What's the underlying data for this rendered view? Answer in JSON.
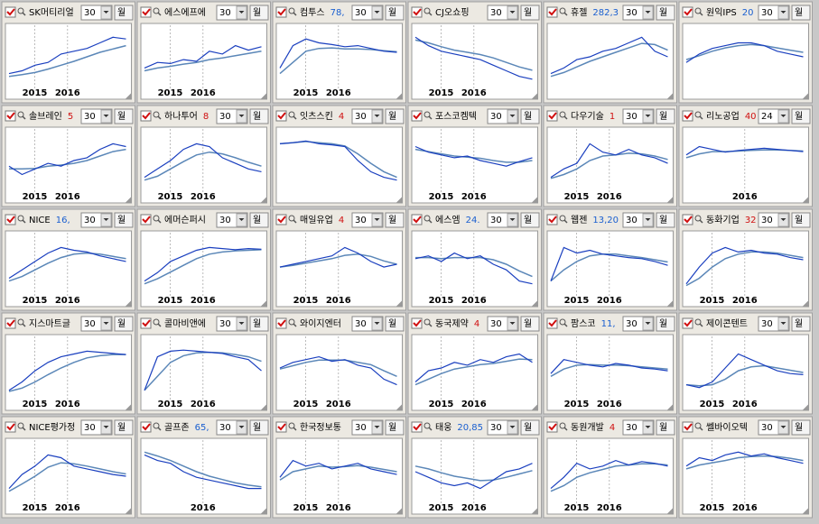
{
  "ylim": [
    0,
    100
  ],
  "price_line_color": "#1a3fbf",
  "ma_color": "#5b87b8",
  "panels": [
    {
      "name": "SK머티리얼",
      "period": "30",
      "button": "월",
      "xlabels": [
        "2015",
        "2016"
      ],
      "price_series": [
        20,
        25,
        35,
        40,
        55,
        60,
        65,
        75,
        85,
        82
      ],
      "ma_series": [
        15,
        18,
        22,
        28,
        35,
        42,
        50,
        58,
        64,
        70
      ]
    },
    {
      "name": "에스에프에",
      "period": "30",
      "button": "월",
      "xlabels": [
        "2015",
        "2016"
      ],
      "price_series": [
        30,
        40,
        38,
        45,
        42,
        60,
        55,
        70,
        62,
        68
      ],
      "ma_series": [
        25,
        30,
        33,
        37,
        40,
        45,
        48,
        52,
        56,
        60
      ]
    },
    {
      "name": "컴투스",
      "price": "78,",
      "price_color": "#1a5fd0",
      "period": "30",
      "button": "월",
      "xlabels": [
        "2015",
        "2016"
      ],
      "price_series": [
        30,
        70,
        82,
        75,
        72,
        68,
        70,
        65,
        60,
        58
      ],
      "ma_series": [
        20,
        40,
        60,
        65,
        66,
        64,
        64,
        63,
        61,
        59
      ]
    },
    {
      "name": "CJ오쇼핑",
      "period": "30",
      "button": "월",
      "xlabels": [
        "2015",
        "2016"
      ],
      "price_series": [
        85,
        70,
        60,
        55,
        50,
        45,
        35,
        25,
        15,
        10
      ],
      "ma_series": [
        80,
        75,
        68,
        62,
        58,
        54,
        48,
        40,
        32,
        26
      ]
    },
    {
      "name": "휴젤",
      "price": "282,3",
      "price_color": "#1a5fd0",
      "period": "30",
      "button": "월",
      "xlabels": [],
      "price_series": [
        20,
        30,
        45,
        50,
        60,
        65,
        75,
        85,
        60,
        50
      ],
      "ma_series": [
        15,
        22,
        32,
        42,
        50,
        58,
        66,
        74,
        72,
        62
      ]
    },
    {
      "name": "원익IPS",
      "price": "20",
      "price_color": "#1a5fd0",
      "period": "30",
      "button": "월",
      "xlabels": [],
      "price_series": [
        40,
        55,
        65,
        70,
        75,
        75,
        70,
        60,
        55,
        50
      ],
      "ma_series": [
        45,
        52,
        60,
        66,
        70,
        72,
        70,
        66,
        62,
        58
      ]
    },
    {
      "name": "솔브레인",
      "price": "5",
      "price_color": "#d01010",
      "period": "30",
      "button": "월",
      "xlabels": [
        "2015",
        "2016"
      ],
      "price_series": [
        40,
        25,
        35,
        45,
        40,
        50,
        55,
        70,
        80,
        75
      ],
      "ma_series": [
        35,
        35,
        36,
        40,
        42,
        45,
        50,
        58,
        66,
        70
      ]
    },
    {
      "name": "하나투어",
      "price": "8",
      "price_color": "#d01010",
      "period": "30",
      "button": "월",
      "xlabels": [
        "2015",
        "2016"
      ],
      "price_series": [
        20,
        35,
        50,
        70,
        80,
        75,
        55,
        45,
        35,
        30
      ],
      "ma_series": [
        15,
        22,
        35,
        48,
        60,
        65,
        62,
        55,
        47,
        40
      ]
    },
    {
      "name": "잇츠스킨",
      "price": "4",
      "price_color": "#d01010",
      "period": "30",
      "button": "월",
      "xlabels": [],
      "price_series": [
        80,
        82,
        85,
        80,
        78,
        75,
        50,
        30,
        20,
        15
      ],
      "ma_series": [
        80,
        82,
        84,
        82,
        80,
        76,
        62,
        45,
        30,
        20
      ]
    },
    {
      "name": "포스코켐텍",
      "period": "30",
      "button": "월",
      "xlabels": [
        "2015",
        "2016"
      ],
      "price_series": [
        75,
        65,
        60,
        55,
        58,
        50,
        45,
        40,
        48,
        55
      ],
      "ma_series": [
        70,
        66,
        62,
        58,
        56,
        54,
        50,
        47,
        47,
        50
      ]
    },
    {
      "name": "다우기술",
      "price": "1",
      "price_color": "#d01010",
      "period": "30",
      "button": "월",
      "xlabels": [
        "2015",
        "2016"
      ],
      "price_series": [
        20,
        35,
        45,
        80,
        65,
        60,
        70,
        60,
        55,
        45
      ],
      "ma_series": [
        18,
        25,
        35,
        50,
        58,
        60,
        63,
        62,
        58,
        52
      ]
    },
    {
      "name": "리노공업",
      "price": "40",
      "price_color": "#d01010",
      "period": "24",
      "button": "월",
      "xlabels": [
        "2016"
      ],
      "price_series": [
        60,
        75,
        70,
        65,
        68,
        70,
        72,
        70,
        68,
        66
      ],
      "ma_series": [
        55,
        62,
        66,
        66,
        67,
        68,
        69,
        69,
        68,
        67
      ]
    },
    {
      "name": "NICE",
      "price": "16,",
      "price_color": "#1a5fd0",
      "period": "30",
      "button": "월",
      "xlabels": [
        "2015",
        "2016"
      ],
      "price_series": [
        25,
        40,
        55,
        70,
        80,
        75,
        72,
        65,
        60,
        55
      ],
      "ma_series": [
        20,
        28,
        40,
        52,
        62,
        68,
        70,
        68,
        64,
        60
      ]
    },
    {
      "name": "에머슨퍼시",
      "period": "30",
      "button": "월",
      "xlabels": [
        "2015",
        "2016"
      ],
      "price_series": [
        20,
        35,
        55,
        65,
        75,
        80,
        78,
        76,
        78,
        77
      ],
      "ma_series": [
        15,
        24,
        36,
        48,
        60,
        68,
        72,
        74,
        75,
        76
      ]
    },
    {
      "name": "매일유업",
      "price": "4",
      "price_color": "#d01010",
      "period": "30",
      "button": "월",
      "xlabels": [
        "2015",
        "2016"
      ],
      "price_series": [
        45,
        50,
        55,
        60,
        65,
        80,
        70,
        55,
        45,
        50
      ],
      "ma_series": [
        45,
        48,
        52,
        56,
        60,
        66,
        68,
        64,
        56,
        50
      ]
    },
    {
      "name": "에스엠",
      "price": "24.",
      "price_color": "#1a5fd0",
      "period": "30",
      "button": "월",
      "xlabels": [
        "2015",
        "2016"
      ],
      "price_series": [
        60,
        65,
        55,
        70,
        60,
        65,
        50,
        40,
        20,
        15
      ],
      "ma_series": [
        62,
        62,
        60,
        62,
        62,
        62,
        58,
        50,
        38,
        28
      ]
    },
    {
      "name": "웹젠",
      "price": "13,20",
      "price_color": "#1a5fd0",
      "period": "30",
      "button": "월",
      "xlabels": [
        "2015",
        "2016"
      ],
      "price_series": [
        20,
        80,
        70,
        75,
        68,
        65,
        62,
        60,
        55,
        48
      ],
      "ma_series": [
        20,
        40,
        55,
        65,
        68,
        68,
        65,
        62,
        58,
        54
      ]
    },
    {
      "name": "동화기업",
      "price": "32",
      "price_color": "#d01010",
      "period": "30",
      "button": "월",
      "xlabels": [
        "2015",
        "2016"
      ],
      "price_series": [
        15,
        45,
        70,
        80,
        72,
        75,
        70,
        68,
        62,
        58
      ],
      "ma_series": [
        12,
        25,
        45,
        60,
        68,
        72,
        72,
        70,
        66,
        62
      ]
    },
    {
      "name": "지스마트글",
      "period": "30",
      "button": "월",
      "xlabels": [
        "2015",
        "2016"
      ],
      "price_series": [
        10,
        25,
        45,
        60,
        70,
        75,
        80,
        78,
        76,
        74
      ],
      "ma_series": [
        8,
        14,
        25,
        38,
        50,
        60,
        68,
        72,
        74,
        74
      ]
    },
    {
      "name": "콜마비앤에",
      "period": "30",
      "button": "월",
      "xlabels": [
        "2015",
        "2016"
      ],
      "price_series": [
        10,
        70,
        80,
        82,
        80,
        78,
        76,
        70,
        65,
        45
      ],
      "ma_series": [
        10,
        35,
        60,
        72,
        77,
        78,
        77,
        74,
        70,
        62
      ]
    },
    {
      "name": "와이지엔터",
      "period": "30",
      "button": "월",
      "xlabels": [
        "2015",
        "2016"
      ],
      "price_series": [
        50,
        60,
        65,
        70,
        62,
        65,
        55,
        50,
        30,
        20
      ],
      "ma_series": [
        48,
        54,
        60,
        64,
        64,
        64,
        60,
        56,
        45,
        35
      ]
    },
    {
      "name": "동국제약",
      "price": "4",
      "price_color": "#d01010",
      "period": "30",
      "button": "월",
      "xlabels": [
        "2015",
        "2016"
      ],
      "price_series": [
        25,
        45,
        50,
        60,
        55,
        65,
        60,
        70,
        75,
        60
      ],
      "ma_series": [
        20,
        30,
        40,
        48,
        52,
        56,
        58,
        62,
        66,
        65
      ]
    },
    {
      "name": "팜스코",
      "price": "11,",
      "price_color": "#1a5fd0",
      "period": "30",
      "button": "월",
      "xlabels": [
        "2015",
        "2016"
      ],
      "price_series": [
        40,
        65,
        60,
        55,
        52,
        58,
        55,
        50,
        48,
        45
      ],
      "ma_series": [
        35,
        48,
        55,
        56,
        55,
        55,
        54,
        52,
        50,
        48
      ]
    },
    {
      "name": "제이콘텐트",
      "period": "30",
      "button": "월",
      "xlabels": [
        "2015",
        "2016"
      ],
      "price_series": [
        20,
        15,
        25,
        50,
        75,
        65,
        55,
        45,
        40,
        38
      ],
      "ma_series": [
        20,
        18,
        20,
        30,
        45,
        52,
        54,
        50,
        46,
        42
      ]
    },
    {
      "name": "NICE평가정",
      "period": "30",
      "button": "월",
      "xlabels": [
        "2015",
        "2016"
      ],
      "price_series": [
        20,
        45,
        60,
        80,
        75,
        60,
        55,
        50,
        45,
        42
      ],
      "ma_series": [
        15,
        28,
        42,
        58,
        66,
        64,
        60,
        55,
        50,
        46
      ]
    },
    {
      "name": "골프존",
      "price": "65,",
      "price_color": "#1a5fd0",
      "period": "30",
      "button": "월",
      "xlabels": [
        "2016"
      ],
      "price_series": [
        80,
        70,
        65,
        50,
        40,
        35,
        30,
        25,
        20,
        20
      ],
      "ma_series": [
        85,
        78,
        70,
        60,
        50,
        42,
        36,
        30,
        26,
        23
      ]
    },
    {
      "name": "한국정보통",
      "period": "30",
      "button": "월",
      "xlabels": [
        "2015",
        "2016"
      ],
      "price_series": [
        40,
        70,
        60,
        65,
        55,
        60,
        65,
        55,
        50,
        45
      ],
      "ma_series": [
        35,
        50,
        55,
        60,
        58,
        59,
        61,
        58,
        54,
        50
      ]
    },
    {
      "name": "태웅",
      "price": "20,85",
      "price_color": "#1a5fd0",
      "period": "30",
      "button": "월",
      "xlabels": [
        "2015",
        "2016"
      ],
      "price_series": [
        50,
        40,
        30,
        25,
        30,
        20,
        35,
        50,
        55,
        65
      ],
      "ma_series": [
        60,
        55,
        48,
        42,
        38,
        34,
        35,
        40,
        46,
        52
      ]
    },
    {
      "name": "동원개발",
      "price": "4",
      "price_color": "#d01010",
      "period": "30",
      "button": "월",
      "xlabels": [
        "2015",
        "2016"
      ],
      "price_series": [
        20,
        40,
        65,
        55,
        60,
        70,
        62,
        68,
        65,
        60
      ],
      "ma_series": [
        15,
        25,
        40,
        48,
        54,
        60,
        62,
        64,
        64,
        62
      ]
    },
    {
      "name": "쎌바이오텍",
      "period": "30",
      "button": "월",
      "xlabels": [
        "2015",
        "2016"
      ],
      "price_series": [
        60,
        75,
        70,
        80,
        85,
        78,
        82,
        75,
        70,
        65
      ],
      "ma_series": [
        55,
        62,
        66,
        70,
        75,
        77,
        78,
        77,
        74,
        70
      ]
    }
  ]
}
